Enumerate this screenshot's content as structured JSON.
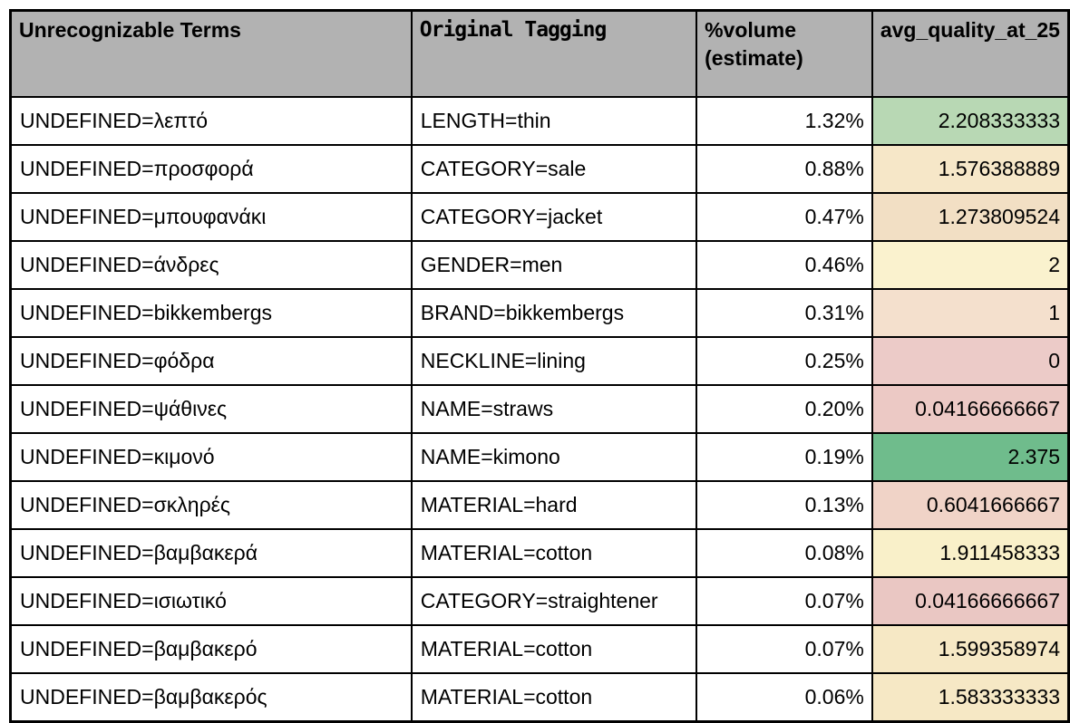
{
  "table": {
    "columns": [
      {
        "key": "term",
        "label": "Unrecognizable Terms"
      },
      {
        "key": "tagging",
        "label": "Original Tagging"
      },
      {
        "key": "volume",
        "label": "%volume\n(estimate)"
      },
      {
        "key": "quality",
        "label": "avg_quality_at_25"
      }
    ],
    "rows": [
      {
        "term": "UNDEFINED=λεπτό",
        "tagging": "LENGTH=thin",
        "volume": "1.32%",
        "quality": "2.208333333",
        "quality_bg": "#b8d8b4"
      },
      {
        "term": "UNDEFINED=προσφορά",
        "tagging": "CATEGORY=sale",
        "volume": "0.88%",
        "quality": "1.576388889",
        "quality_bg": "#f6e7c8"
      },
      {
        "term": "UNDEFINED=μπουφανάκι",
        "tagging": "CATEGORY=jacket",
        "volume": "0.47%",
        "quality": "1.273809524",
        "quality_bg": "#f2dfc4"
      },
      {
        "term": "UNDEFINED=άνδρες",
        "tagging": "GENDER=men",
        "volume": "0.46%",
        "quality": "2",
        "quality_bg": "#faf2ce"
      },
      {
        "term": "UNDEFINED=bikkembergs",
        "tagging": "BRAND=bikkembergs",
        "volume": "0.31%",
        "quality": "1",
        "quality_bg": "#f4e0cd"
      },
      {
        "term": "UNDEFINED=φόδρα",
        "tagging": "NECKLINE=lining",
        "volume": "0.25%",
        "quality": "0",
        "quality_bg": "#eccbc8"
      },
      {
        "term": "UNDEFINED=ψάθινες",
        "tagging": "NAME=straws",
        "volume": "0.20%",
        "quality": "0.04166666667",
        "quality_bg": "#ecc9c5"
      },
      {
        "term": "UNDEFINED=κιμονό",
        "tagging": "NAME=kimono",
        "volume": "0.19%",
        "quality": "2.375",
        "quality_bg": "#6fbc8c"
      },
      {
        "term": "UNDEFINED=σκληρές",
        "tagging": "MATERIAL=hard",
        "volume": "0.13%",
        "quality": "0.6041666667",
        "quality_bg": "#f0d3c7"
      },
      {
        "term": "UNDEFINED=βαμβακερά",
        "tagging": "MATERIAL=cotton",
        "volume": "0.08%",
        "quality": "1.911458333",
        "quality_bg": "#f9f0c9"
      },
      {
        "term": "UNDEFINED=ισιωτικό",
        "tagging": "CATEGORY=straightener",
        "volume": "0.07%",
        "quality": "0.04166666667",
        "quality_bg": "#eac7c3"
      },
      {
        "term": "UNDEFINED=βαμβακερό",
        "tagging": "MATERIAL=cotton",
        "volume": "0.07%",
        "quality": "1.599358974",
        "quality_bg": "#f6e8c5"
      },
      {
        "term": "UNDEFINED=βαμβακερός",
        "tagging": "MATERIAL=cotton",
        "volume": "0.06%",
        "quality": "1.583333333",
        "quality_bg": "#f6e8c5"
      }
    ]
  },
  "colors": {
    "header_bg": "#b2b2b2",
    "border": "#000000",
    "body_bg": "#ffffff"
  }
}
